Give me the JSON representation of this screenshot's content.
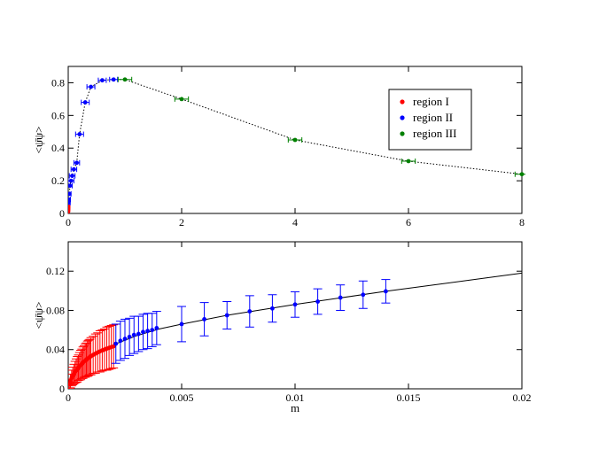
{
  "chart_data": [
    {
      "type": "scatter",
      "title": "",
      "xlabel": "",
      "ylabel": "<ψ̄ψ>",
      "xlim": [
        0,
        8
      ],
      "ylim": [
        0,
        0.9
      ],
      "xticks": [
        0,
        2,
        4,
        6,
        8
      ],
      "xtick_labels": [
        "0",
        "2",
        "4",
        "6",
        "8"
      ],
      "yticks": [
        0,
        0.2,
        0.4,
        0.6,
        0.8
      ],
      "ytick_labels": [
        "0",
        "0.2",
        "0.4",
        "0.6",
        "0.8"
      ],
      "line_style": "dotted",
      "legend_position": "top-right",
      "legend": [
        {
          "name": "region I",
          "color": "#ff0000"
        },
        {
          "name": "region II",
          "color": "#0000ff"
        },
        {
          "name": "region III",
          "color": "#008000"
        }
      ],
      "series": [
        {
          "name": "region I",
          "color": "#ff0000",
          "x": [
            0.0002,
            0.0005,
            0.0008,
            0.0011,
            0.0014,
            0.0017,
            0.002
          ],
          "y": [
            0.012,
            0.02,
            0.026,
            0.032,
            0.036,
            0.04,
            0.044
          ],
          "xerr": [
            0.003,
            0.003,
            0.003,
            0.003,
            0.003,
            0.003,
            0.003
          ]
        },
        {
          "name": "region II",
          "color": "#0000ff",
          "x": [
            0.005,
            0.01,
            0.02,
            0.03,
            0.05,
            0.07,
            0.1,
            0.15,
            0.2,
            0.3,
            0.4,
            0.6,
            0.8
          ],
          "y": [
            0.066,
            0.086,
            0.12,
            0.17,
            0.2,
            0.23,
            0.27,
            0.31,
            0.485,
            0.68,
            0.775,
            0.815,
            0.82
          ],
          "xerr": [
            0.03,
            0.03,
            0.03,
            0.04,
            0.05,
            0.05,
            0.05,
            0.05,
            0.07,
            0.07,
            0.07,
            0.07,
            0.07
          ]
        },
        {
          "name": "region III",
          "color": "#008000",
          "x": [
            1,
            2,
            4,
            6,
            8
          ],
          "y": [
            0.82,
            0.7,
            0.45,
            0.32,
            0.24
          ],
          "xerr": [
            0.12,
            0.12,
            0.12,
            0.12,
            0.12
          ]
        }
      ]
    },
    {
      "type": "scatter",
      "title": "",
      "xlabel": "m",
      "ylabel": "<ψ̄ψ>",
      "xlim": [
        0,
        0.02
      ],
      "ylim": [
        0,
        0.15
      ],
      "xticks": [
        0,
        0.005,
        0.01,
        0.015,
        0.02
      ],
      "xtick_labels": [
        "0",
        "0.005",
        "0.01",
        "0.015",
        "0.02"
      ],
      "yticks": [
        0,
        0.04,
        0.08,
        0.12
      ],
      "ytick_labels": [
        "0",
        "0.04",
        "0.08",
        "0.12"
      ],
      "line_style": "solid",
      "series": [
        {
          "name": "region I",
          "color": "#ff0000",
          "x": [
            5e-05,
            0.0001,
            0.00015,
            0.0002,
            0.00025,
            0.0003,
            0.00035,
            0.0004,
            0.00045,
            0.0005,
            0.00055,
            0.0006,
            0.00065,
            0.0007,
            0.00075,
            0.0008,
            0.00085,
            0.0009,
            0.00095,
            0.001,
            0.0011,
            0.0012,
            0.0013,
            0.0014,
            0.0015,
            0.0016,
            0.0017,
            0.0018,
            0.0019,
            0.002
          ],
          "y": [
            0.005,
            0.008,
            0.011,
            0.013,
            0.015,
            0.017,
            0.0185,
            0.02,
            0.0215,
            0.023,
            0.0243,
            0.0255,
            0.0267,
            0.0278,
            0.0288,
            0.0298,
            0.0307,
            0.0316,
            0.0324,
            0.0332,
            0.0346,
            0.0359,
            0.0371,
            0.0382,
            0.0392,
            0.0401,
            0.041,
            0.0418,
            0.0426,
            0.0433
          ],
          "yerr": [
            0.005,
            0.007,
            0.008,
            0.009,
            0.01,
            0.011,
            0.012,
            0.013,
            0.013,
            0.014,
            0.015,
            0.015,
            0.016,
            0.016,
            0.017,
            0.017,
            0.018,
            0.018,
            0.018,
            0.019,
            0.019,
            0.02,
            0.02,
            0.021,
            0.021,
            0.021,
            0.022,
            0.022,
            0.022,
            0.022
          ]
        },
        {
          "name": "region II",
          "color": "#0000ff",
          "x": [
            0.0021,
            0.0023,
            0.0025,
            0.0027,
            0.0029,
            0.0031,
            0.0033,
            0.0035,
            0.0037,
            0.0039,
            0.005,
            0.006,
            0.007,
            0.008,
            0.009,
            0.01,
            0.011,
            0.012,
            0.013,
            0.014
          ],
          "y": [
            0.046,
            0.049,
            0.051,
            0.053,
            0.055,
            0.056,
            0.058,
            0.059,
            0.06,
            0.062,
            0.066,
            0.071,
            0.075,
            0.079,
            0.082,
            0.086,
            0.089,
            0.093,
            0.096,
            0.0995
          ],
          "yerr": [
            0.02,
            0.02,
            0.02,
            0.019,
            0.019,
            0.018,
            0.018,
            0.018,
            0.017,
            0.017,
            0.018,
            0.017,
            0.014,
            0.016,
            0.014,
            0.013,
            0.013,
            0.013,
            0.014,
            0.012
          ]
        }
      ],
      "fit_line": {
        "color": "#000000",
        "x": [
          0.0001,
          0.0005,
          0.001,
          0.002,
          0.003,
          0.004,
          0.005,
          0.007,
          0.01,
          0.014,
          0.02
        ],
        "y": [
          0.007,
          0.022,
          0.033,
          0.045,
          0.054,
          0.061,
          0.066,
          0.075,
          0.086,
          0.0995,
          0.118
        ]
      }
    }
  ]
}
